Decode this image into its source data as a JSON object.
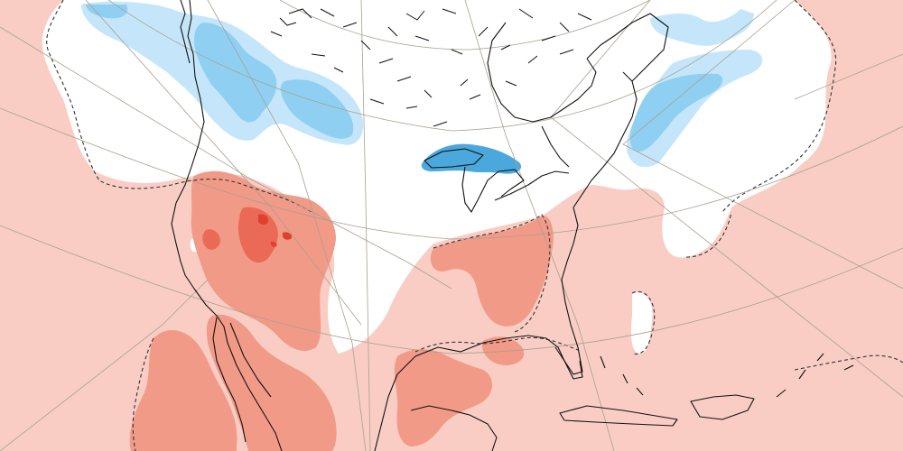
{
  "map": {
    "type": "temperature-anomaly-map",
    "projection": "polar-stereographic",
    "region": "North America",
    "colors": {
      "background": "#f9cdc4",
      "neutral": "#ffffff",
      "warm_light": "#f9cdc4",
      "warm_medium": "#f29a88",
      "warm_strong": "#ea6a55",
      "warm_extreme": "#e0402e",
      "cold_light": "#c5e6fa",
      "cold_medium": "#8fd0f2",
      "cold_strong": "#4aa8dc",
      "coastline": "#111111",
      "graticule": "#a89f8f",
      "contour_dashed": "#333333"
    },
    "layers": [
      "anomaly-shading",
      "dashed-contours",
      "coastlines",
      "graticule"
    ],
    "labels": []
  }
}
